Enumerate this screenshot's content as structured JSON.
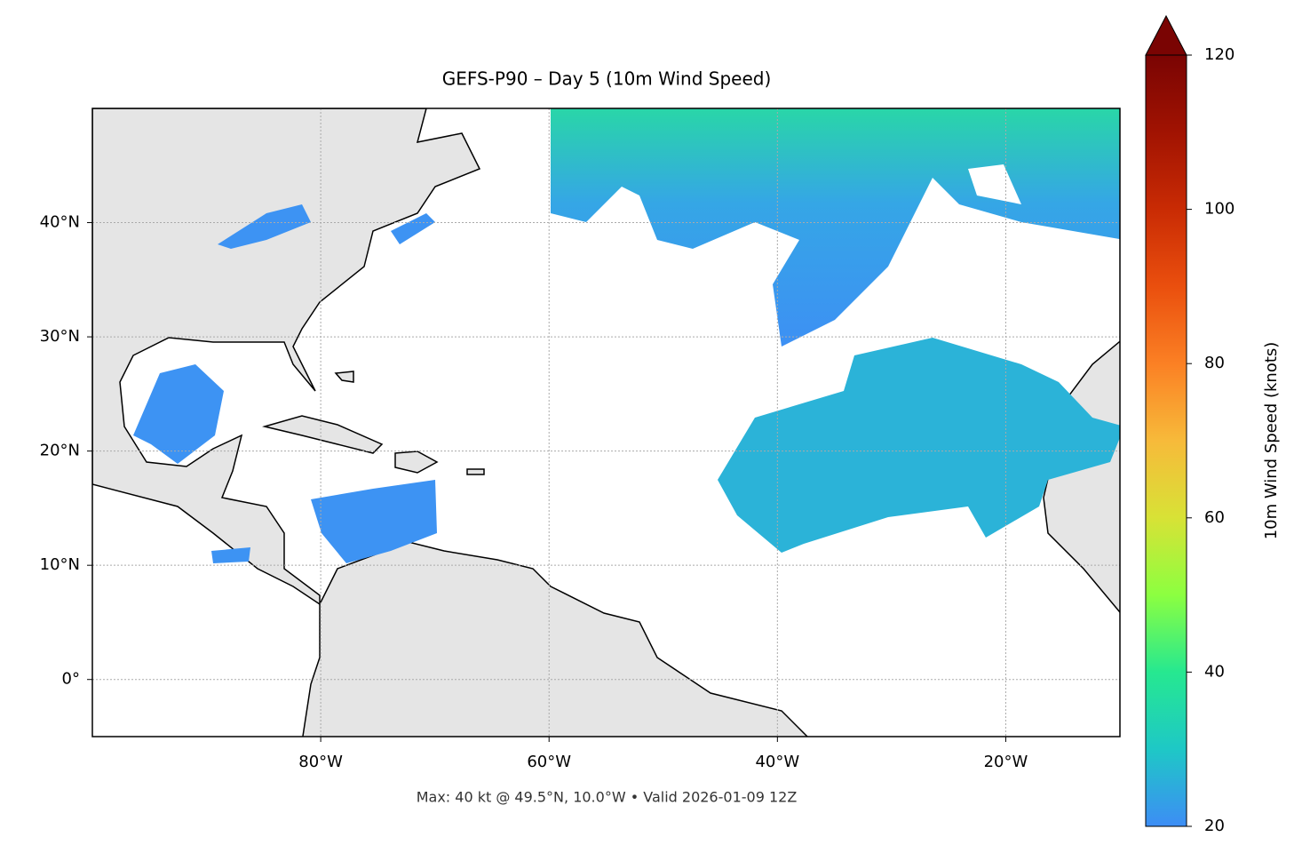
{
  "map": {
    "title": "GEFS-P90 – Day 5 (10m Wind Speed)",
    "lonlim": [
      -100,
      -10
    ],
    "latlim": [
      -5,
      50
    ],
    "xticks": [
      {
        "value": -80,
        "label": "80°W"
      },
      {
        "value": -60,
        "label": "60°W"
      },
      {
        "value": -40,
        "label": "40°W"
      },
      {
        "value": -20,
        "label": "20°W"
      }
    ],
    "yticks": [
      {
        "value": 0,
        "label": "0°"
      },
      {
        "value": 10,
        "label": "10°N"
      },
      {
        "value": 20,
        "label": "20°N"
      },
      {
        "value": 30,
        "label": "30°N"
      },
      {
        "value": 40,
        "label": "40°N"
      }
    ],
    "grid": true,
    "footer": "Max: 40 kt @ 49.5°N, 10.0°W • Valid 2026-01-09 12Z",
    "colorbar": {
      "label": "10m Wind Speed (knots)",
      "lim": [
        20,
        120
      ],
      "ticks": [
        20,
        40,
        60,
        80,
        100,
        120
      ],
      "extend": "max"
    }
  }
}
